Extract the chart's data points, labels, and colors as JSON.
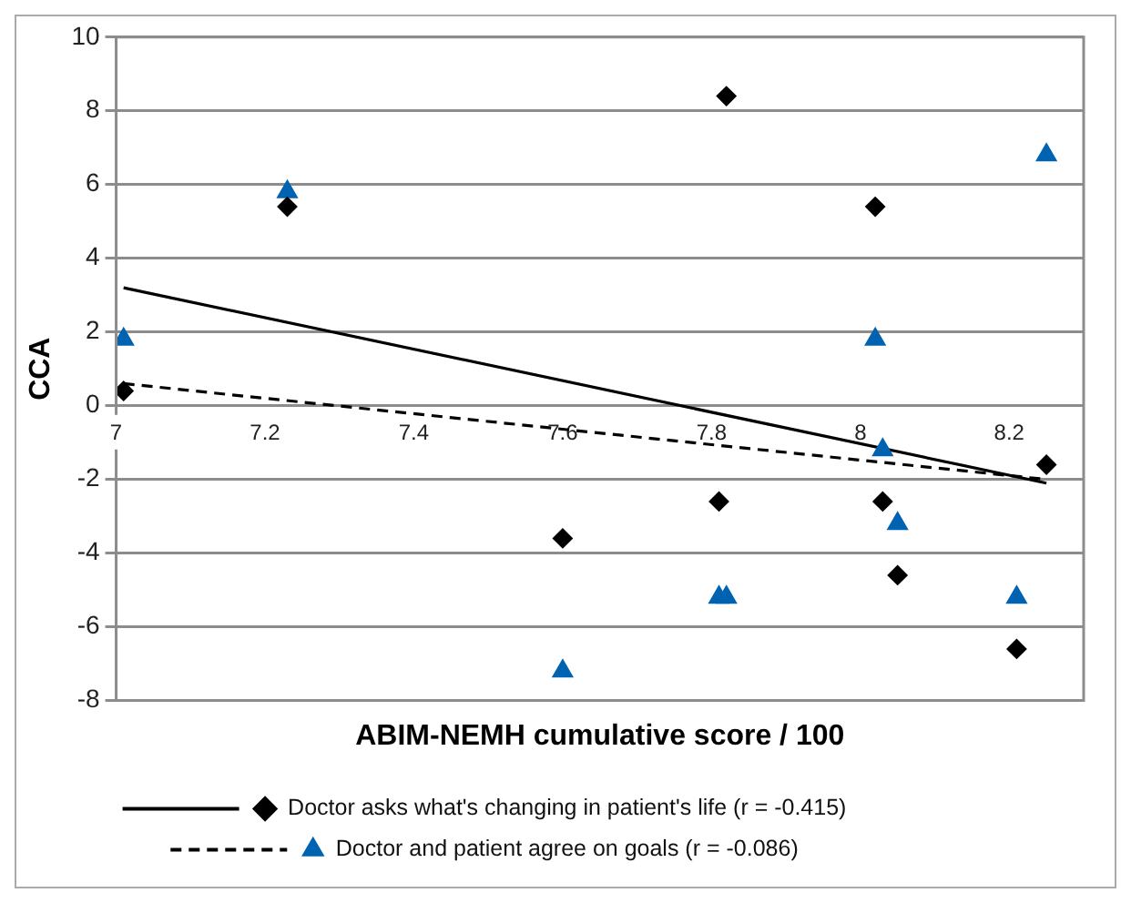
{
  "chart_data": {
    "type": "scatter",
    "xlabel": "ABIM-NEMH cumulative score / 100",
    "ylabel": "CCA",
    "xlim": [
      7,
      8.3
    ],
    "xticks": [
      7,
      7.2,
      7.4,
      7.6,
      7.8,
      8,
      8.2
    ],
    "ylim": [
      -8,
      10
    ],
    "yticks": [
      -8,
      -6,
      -4,
      -2,
      0,
      2,
      4,
      6,
      8,
      10
    ],
    "grid": "y",
    "legend": "bottom",
    "series": [
      {
        "name": "Doctor asks what's changing in patient's life (r = -0.415)",
        "color": "#000000",
        "marker": "diamond",
        "x": [
          7.01,
          7.23,
          7.6,
          7.81,
          7.82,
          8.02,
          8.03,
          8.05,
          8.21,
          8.25
        ],
        "values": [
          0.4,
          5.4,
          -3.6,
          -2.6,
          8.4,
          5.4,
          -2.6,
          -4.6,
          -6.6,
          -1.6
        ]
      },
      {
        "name": "Doctor and patient agree on goals (r = -0.086)",
        "color": "#0063b1",
        "marker": "triangle",
        "x": [
          7.01,
          7.23,
          7.6,
          7.81,
          7.82,
          8.02,
          8.03,
          8.05,
          8.21,
          8.25
        ],
        "values": [
          1.8,
          5.8,
          -7.2,
          -5.2,
          -5.2,
          1.8,
          -1.2,
          -3.2,
          -5.2,
          6.8
        ]
      },
      {
        "type": "line",
        "color": "#000000",
        "line_style": "solid",
        "x": [
          7.01,
          8.25
        ],
        "values": [
          3.2,
          -2.1
        ]
      },
      {
        "type": "line",
        "color": "#000000",
        "line_style": "dashed",
        "x": [
          7.01,
          8.25
        ],
        "values": [
          0.6,
          -2.0
        ]
      }
    ]
  }
}
